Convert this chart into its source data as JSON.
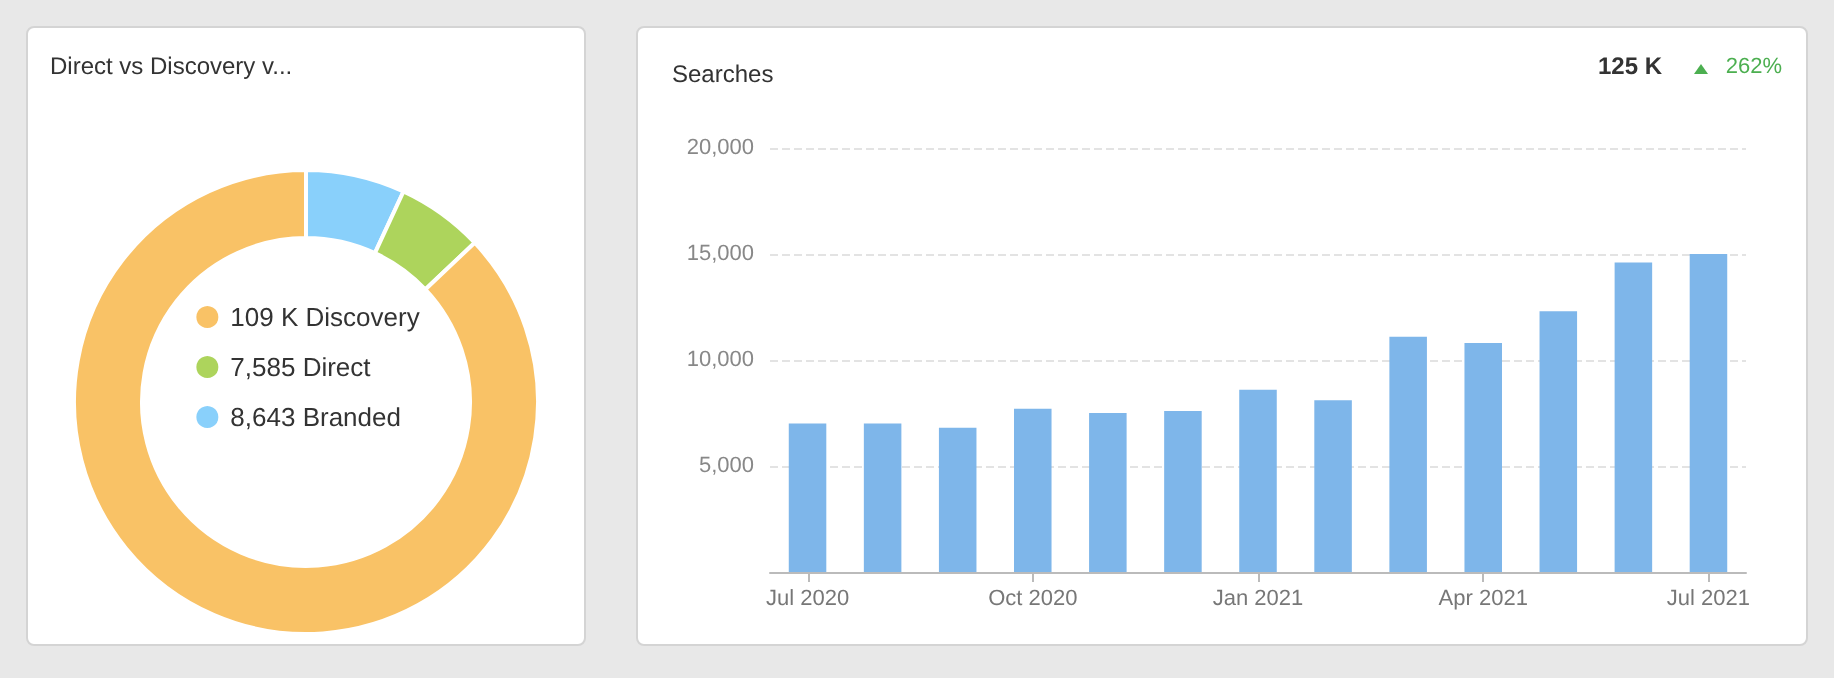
{
  "chart_data": [
    {
      "type": "donut",
      "title": "Direct vs Discovery v...",
      "categories": [
        "Discovery",
        "Direct",
        "Branded"
      ],
      "values": [
        109000,
        7585,
        8643
      ],
      "value_labels": [
        "109 K",
        "7,585",
        "8,643"
      ],
      "colors": [
        "#f9c266",
        "#add45c",
        "#89d0fb"
      ],
      "legend": "center"
    },
    {
      "type": "bar",
      "title": "Searches",
      "annotations": [
        "125 K",
        "262%"
      ],
      "categories": [
        "Jul 2020",
        null,
        null,
        "Oct 2020",
        null,
        null,
        "Jan 2021",
        null,
        null,
        "Apr 2021",
        null,
        null,
        "Jul 2021"
      ],
      "series": [
        {
          "color": "#7eb6ea",
          "values": [
            7000,
            7000,
            6800,
            7700,
            7500,
            7600,
            8600,
            8100,
            11100,
            10800,
            12300,
            14600,
            15000
          ]
        }
      ],
      "ylim": [
        0,
        20000
      ],
      "yticks": [
        {
          "value": 5000,
          "label": "5,000"
        },
        {
          "value": 10000,
          "label": "10,000"
        },
        {
          "value": 15000,
          "label": "15,000"
        },
        {
          "value": 20000,
          "label": "20,000"
        }
      ],
      "grid": "y",
      "legend": false
    }
  ]
}
